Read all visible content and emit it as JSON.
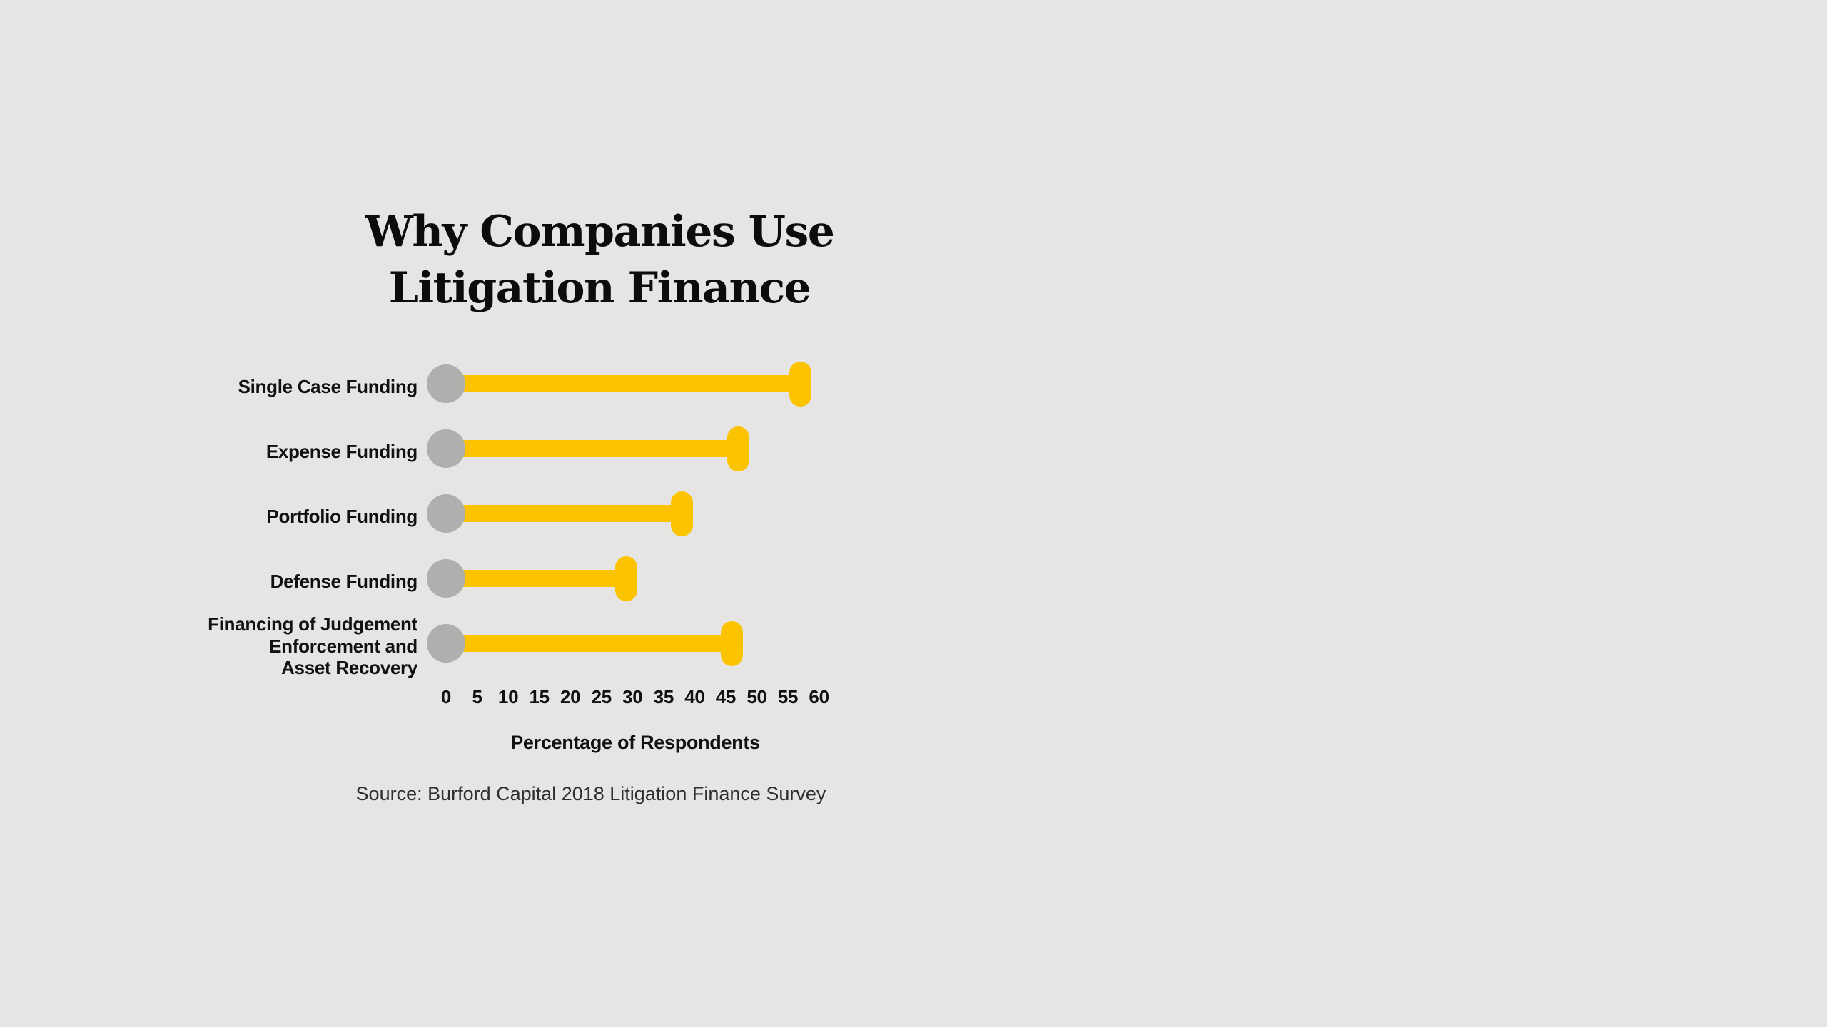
{
  "page": {
    "background_color": "#E6E5E4"
  },
  "chart": {
    "title": "Why Companies Use\nLitigation Finance",
    "xlabel": "Percentage of Respondents",
    "source": "Source: Burford Capital 2018 Litigation Finance Survey"
  },
  "chart_data": {
    "type": "bar",
    "style": "horizontal-lollipop",
    "title": "Why Companies Use Litigation Finance",
    "categories": [
      "Single Case Funding",
      "Expense Funding",
      "Portfolio Funding",
      "Defense Funding",
      "Financing of Judgement\nEnforcement and\nAsset Recovery"
    ],
    "values": [
      57,
      47,
      38,
      29,
      46
    ],
    "xlabel": "Percentage of Respondents",
    "ylabel": "",
    "xlim": [
      0,
      60
    ],
    "x_ticks": [
      0,
      5,
      10,
      15,
      20,
      25,
      30,
      35,
      40,
      45,
      50,
      55,
      60
    ],
    "grid": false,
    "legend": false,
    "source": "Source: Burford Capital 2018 Litigation Finance Survey",
    "colors": {
      "bar": "#FCC300",
      "dot": "#AFAFAD",
      "text": "#111111",
      "source_text": "#2F2F2F",
      "background": "#E6E5E4"
    }
  }
}
